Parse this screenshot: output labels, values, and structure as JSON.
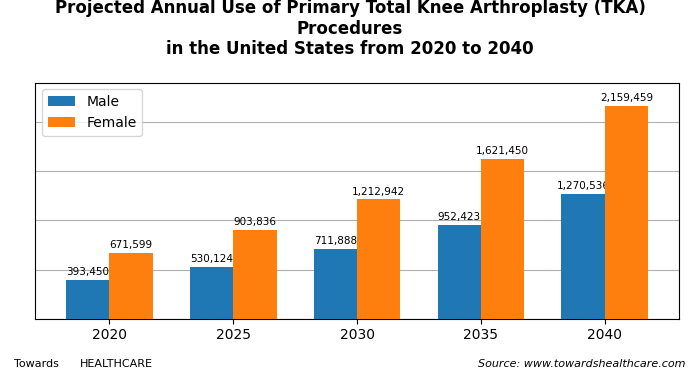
{
  "chart_data": {
    "type": "bar",
    "title": "Projected Annual Use of Primary Total Knee Arthroplasty (TKA) Procedures",
    "subtitle": "in the United States from 2020 to 2040",
    "categories": [
      "2020",
      "2025",
      "2030",
      "2035",
      "2040"
    ],
    "series": [
      {
        "name": "Male",
        "values": [
          393450,
          530124,
          711888,
          952423,
          1270536
        ],
        "value_labels": [
          "393,450",
          "530,124",
          "711,888",
          "952,423",
          "1,270,536"
        ]
      },
      {
        "name": "Female",
        "values": [
          671599,
          903836,
          1212942,
          1621450,
          2159459
        ],
        "value_labels": [
          "671,599",
          "903,836",
          "1,212,942",
          "1,621,450",
          "2,159,459"
        ]
      }
    ],
    "ylim": [
      0,
      2400000
    ],
    "yticks": [
      0,
      500000,
      1000000,
      1500000,
      2000000
    ],
    "grid": true,
    "legend": "upper left",
    "data_labels": true,
    "tick_labels": "x",
    "annotations": [
      "Source: www.towardshealthcare.com",
      "Towards",
      "HEALTHCARE"
    ]
  }
}
